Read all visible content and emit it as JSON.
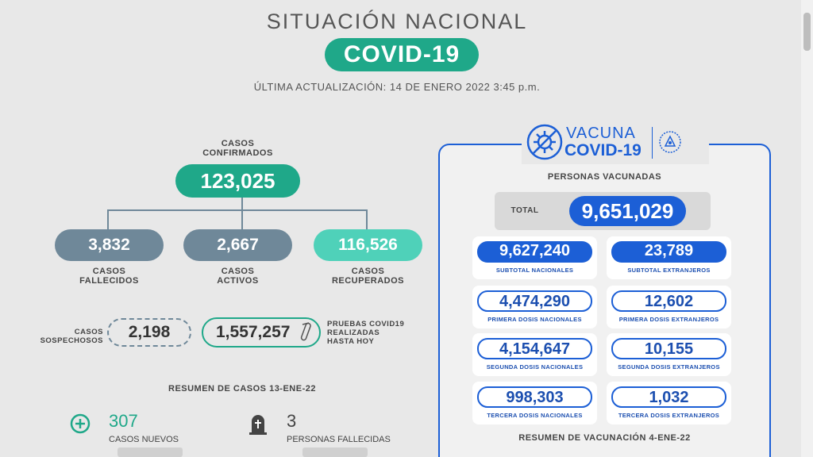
{
  "header": {
    "title": "SITUACIÓN NACIONAL",
    "subtitle": "COVID-19",
    "updated": "ÚLTIMA ACTUALIZACIÓN: 14 DE ENERO 2022 3:45 p.m."
  },
  "cases": {
    "confirmed_label_1": "CASOS",
    "confirmed_label_2": "CONFIRMADOS",
    "confirmed_value": "123,025",
    "deceased_value": "3,832",
    "deceased_label_1": "CASOS",
    "deceased_label_2": "FALLECIDOS",
    "active_value": "2,667",
    "active_label_1": "CASOS",
    "active_label_2": "ACTIVOS",
    "recovered_value": "116,526",
    "recovered_label_1": "CASOS",
    "recovered_label_2": "RECUPERADOS",
    "suspected_label_1": "CASOS",
    "suspected_label_2": "SOSPECHOSOS",
    "suspected_value": "2,198",
    "tests_value": "1,557,257",
    "tests_label_1": "PRUEBAS COVID19",
    "tests_label_2": "REALIZADAS",
    "tests_label_3": "HASTA HOY"
  },
  "summary": {
    "title": "RESUMEN DE CASOS 13-ENE-22",
    "new_cases_value": "307",
    "new_cases_label": "CASOS NUEVOS",
    "deaths_value": "3",
    "deaths_label": "PERSONAS FALLECIDAS"
  },
  "vaccination": {
    "logo_word_1": "VACUNA",
    "logo_word_2": "COVID-19",
    "heading": "PERSONAS VACUNADAS",
    "total_label": "TOTAL",
    "total_value": "9,651,029",
    "cards": [
      {
        "value": "9,627,240",
        "label": "SUBTOTAL NACIONALES"
      },
      {
        "value": "23,789",
        "label": "SUBTOTAL EXTRANJEROS"
      },
      {
        "value": "4,474,290",
        "label": "PRIMERA DOSIS NACIONALES"
      },
      {
        "value": "12,602",
        "label": "PRIMERA DOSIS EXTRANJEROS"
      },
      {
        "value": "4,154,647",
        "label": "SEGUNDA DOSIS NACIONALES"
      },
      {
        "value": "10,155",
        "label": "SEGUNDA DOSIS EXTRANJEROS"
      },
      {
        "value": "998,303",
        "label": "TERCERA DOSIS NACIONALES"
      },
      {
        "value": "1,032",
        "label": "TERCERA DOSIS EXTRANJEROS"
      }
    ],
    "summary_title": "RESUMEN DE VACUNACIÓN 4-ENE-22"
  },
  "colors": {
    "teal": "#1fa889",
    "light_teal": "#4fd1b9",
    "slate": "#6f8899",
    "blue": "#1c5fd6"
  },
  "icons": [
    "plus-circle-icon",
    "tombstone-icon",
    "test-tube-icon",
    "virus-icon",
    "coat-of-arms-icon"
  ]
}
